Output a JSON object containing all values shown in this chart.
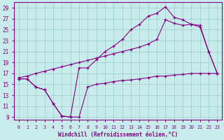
{
  "xlabel": "Windchill (Refroidissement éolien,°C)",
  "ylabel": "",
  "xlim": [
    -0.5,
    23.5
  ],
  "ylim": [
    8.5,
    30.0
  ],
  "xticks": [
    0,
    1,
    2,
    3,
    4,
    5,
    6,
    7,
    8,
    9,
    10,
    11,
    12,
    13,
    14,
    15,
    16,
    17,
    18,
    19,
    20,
    21,
    22,
    23
  ],
  "yticks": [
    9,
    11,
    13,
    15,
    17,
    19,
    21,
    23,
    25,
    27,
    29
  ],
  "bg_color": "#c8ecec",
  "line_color": "#880088",
  "grid_color": "#99cccc",
  "line1_x": [
    0,
    1,
    2,
    3,
    4,
    5,
    6,
    7,
    8,
    9,
    10,
    11,
    12,
    13,
    14,
    15,
    16,
    17,
    18,
    19,
    20,
    21,
    22,
    23
  ],
  "line1_y": [
    16.0,
    16.0,
    14.5,
    14.0,
    11.5,
    9.2,
    9.0,
    9.0,
    14.5,
    15.0,
    15.2,
    15.5,
    15.7,
    15.8,
    16.0,
    16.2,
    16.5,
    16.5,
    16.7,
    16.8,
    17.0,
    17.0,
    17.0,
    17.0
  ],
  "line2_x": [
    0,
    1,
    2,
    3,
    4,
    5,
    6,
    7,
    8,
    9,
    10,
    11,
    12,
    13,
    14,
    15,
    16,
    17,
    18,
    19,
    20,
    21,
    22,
    23
  ],
  "line2_y": [
    16.0,
    16.0,
    14.5,
    14.0,
    11.5,
    9.2,
    9.0,
    18.0,
    18.0,
    19.5,
    21.0,
    22.0,
    23.2,
    25.0,
    26.0,
    27.5,
    28.0,
    29.2,
    27.3,
    26.8,
    26.0,
    25.8,
    21.0,
    17.0
  ],
  "line3_x": [
    0,
    1,
    2,
    3,
    4,
    5,
    6,
    7,
    8,
    9,
    10,
    11,
    12,
    13,
    14,
    15,
    16,
    17,
    18,
    19,
    20,
    21,
    22,
    23
  ],
  "line3_y": [
    16.2,
    16.5,
    17.0,
    17.4,
    17.8,
    18.2,
    18.6,
    19.0,
    19.4,
    19.8,
    20.2,
    20.6,
    21.0,
    21.4,
    21.8,
    22.4,
    23.2,
    26.8,
    26.2,
    25.8,
    26.0,
    25.5,
    21.0,
    17.0
  ]
}
